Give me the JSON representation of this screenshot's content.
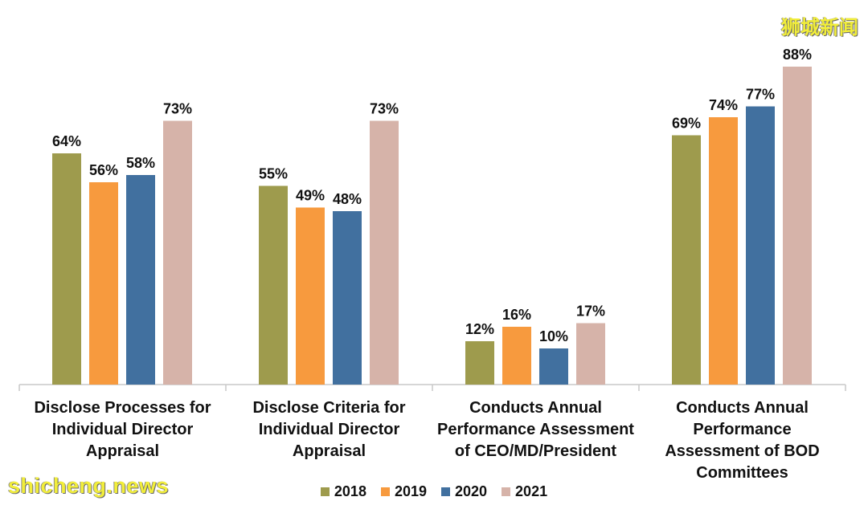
{
  "chart_data": {
    "type": "bar",
    "categories": [
      "Disclose Processes for\nIndividual Director\nAppraisal",
      "Disclose Criteria for\nIndividual Director\nAppraisal",
      "Conducts Annual\nPerformance Assessment\nof CEO/MD/President",
      "Conducts Annual\nPerformance\nAssessment of BOD\nCommittees"
    ],
    "series": [
      {
        "name": "2018",
        "color": "#9e9b4d",
        "values": [
          64,
          55,
          12,
          69
        ]
      },
      {
        "name": "2019",
        "color": "#f79a3e",
        "values": [
          56,
          49,
          16,
          74
        ]
      },
      {
        "name": "2020",
        "color": "#41709f",
        "values": [
          58,
          48,
          10,
          77
        ]
      },
      {
        "name": "2021",
        "color": "#d6b3a9",
        "values": [
          73,
          73,
          17,
          88
        ]
      }
    ],
    "value_suffix": "%",
    "ylim": [
      0,
      100
    ],
    "grid": false,
    "legend_position": "bottom"
  },
  "watermarks": {
    "bottom_left": "shicheng.news",
    "top_right": "狮城新闻"
  }
}
